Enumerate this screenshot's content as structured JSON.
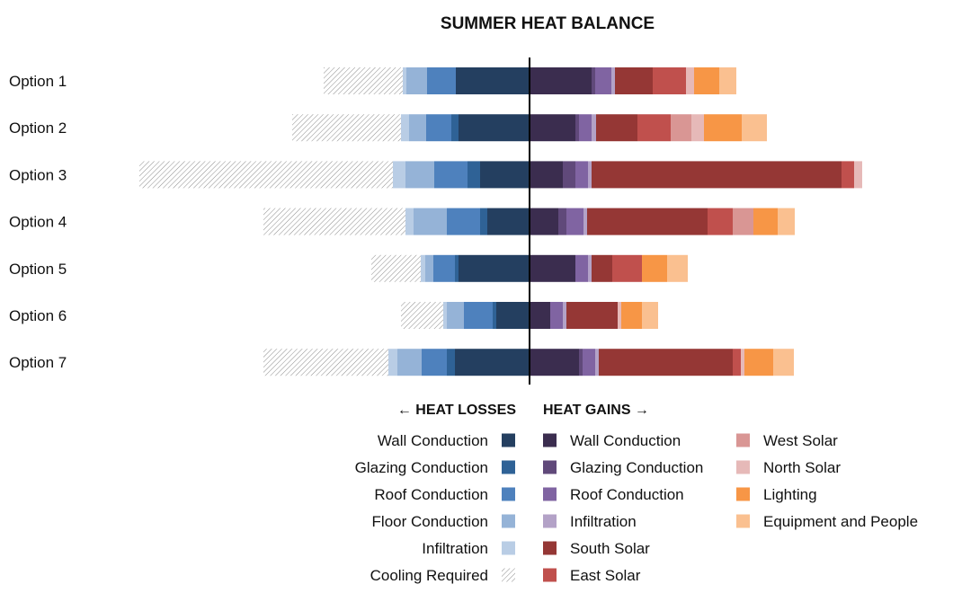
{
  "chart_data": {
    "type": "bar",
    "title": "SUMMER HEAT BALANCE",
    "categories": [
      "Option 1",
      "Option 2",
      "Option 3",
      "Option 4",
      "Option 5",
      "Option 6",
      "Option 7"
    ],
    "xlim": [
      -435,
      470
    ],
    "grid": false,
    "losses_label": "← HEAT LOSSES",
    "gains_label": "HEAT GAINS →",
    "loss_series": [
      {
        "name": "Wall Conduction",
        "color": "#243f60",
        "values": [
          82,
          79,
          55,
          47,
          79,
          37,
          83
        ]
      },
      {
        "name": "Glazing Conduction",
        "color": "#2f6296",
        "values": [
          0,
          8,
          14,
          8,
          4,
          4,
          9
        ]
      },
      {
        "name": "Roof Conduction",
        "color": "#4e81bd",
        "values": [
          32,
          28,
          37,
          37,
          24,
          32,
          28
        ]
      },
      {
        "name": "Floor Conduction",
        "color": "#95b3d7",
        "values": [
          23,
          19,
          32,
          37,
          9,
          19,
          27
        ]
      },
      {
        "name": "Infiltration",
        "color": "#b9cde5",
        "values": [
          4,
          9,
          14,
          9,
          5,
          4,
          10
        ]
      },
      {
        "name": "Cooling Required",
        "color": "hatch",
        "values": [
          88,
          121,
          282,
          158,
          55,
          47,
          139
        ]
      }
    ],
    "gain_series": [
      {
        "name": "Wall Conduction",
        "color": "#3b2d4f",
        "values": [
          69,
          51,
          37,
          32,
          51,
          23,
          55
        ]
      },
      {
        "name": "Glazing Conduction",
        "color": "#60497a",
        "values": [
          4,
          4,
          14,
          9,
          0,
          0,
          4
        ]
      },
      {
        "name": "Roof Conduction",
        "color": "#8064a2",
        "values": [
          18,
          14,
          14,
          19,
          14,
          14,
          14
        ]
      },
      {
        "name": "Infiltration",
        "color": "#b3a2c7",
        "values": [
          4,
          5,
          4,
          4,
          4,
          4,
          4
        ]
      },
      {
        "name": "South Solar",
        "color": "#953735",
        "values": [
          42,
          46,
          278,
          134,
          23,
          57,
          149
        ]
      },
      {
        "name": "East Solar",
        "color": "#c0504d",
        "values": [
          37,
          37,
          14,
          28,
          33,
          0,
          9
        ]
      },
      {
        "name": "West Solar",
        "color": "#d99694",
        "values": [
          0,
          23,
          0,
          23,
          0,
          0,
          0
        ]
      },
      {
        "name": "North Solar",
        "color": "#e6b9b8",
        "values": [
          9,
          14,
          9,
          0,
          0,
          4,
          4
        ]
      },
      {
        "name": "Lighting",
        "color": "#f79646",
        "values": [
          28,
          42,
          0,
          27,
          28,
          23,
          32
        ]
      },
      {
        "name": "Equipment and People",
        "color": "#fac090",
        "values": [
          19,
          28,
          0,
          19,
          23,
          18,
          23
        ]
      }
    ]
  }
}
